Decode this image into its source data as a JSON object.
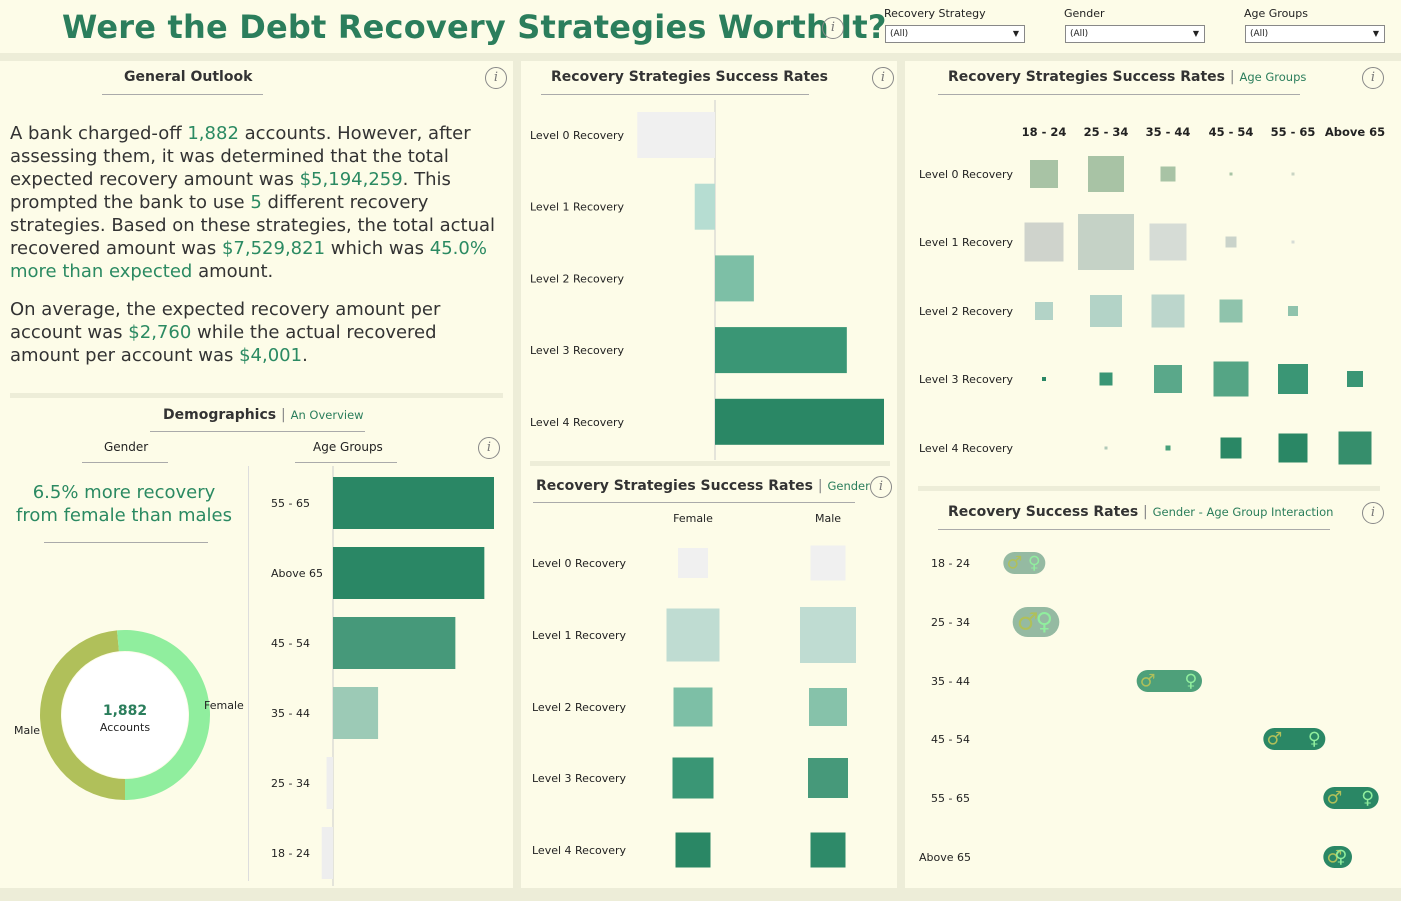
{
  "page": {
    "title": "Were the Debt Recovery Strategies Worth It?",
    "info_icon_glyph": "i"
  },
  "filters": [
    {
      "label": "Recovery Strategy",
      "value": "(All)"
    },
    {
      "label": "Gender",
      "value": "(All)"
    },
    {
      "label": "Age Groups",
      "value": "(All)"
    }
  ],
  "general_outlook": {
    "title": "General Outlook",
    "p1": [
      "A bank charged-off ",
      "1,882",
      " accounts. However, after assessing them, it was determined that the total expected recovery amount was ",
      "$5,194,259",
      ". This prompted the bank to use ",
      "5",
      " different recovery strategies. Based on these strategies, the total actual recovered amount was ",
      "$7,529,821",
      " which was ",
      "45.0% more than expected",
      " amount."
    ],
    "p2": [
      "On average, the expected recovery amount per account was ",
      "$2,760",
      " while the actual recovered amount per account was ",
      "$4,001",
      "."
    ]
  },
  "demographics": {
    "title": "Demographics",
    "subtitle": "An Overview",
    "gender_header": "Gender",
    "age_header": "Age Groups",
    "gender_insight": "6.5% more recovery from female than males",
    "donut_center_value": "1,882",
    "donut_center_label": "Accounts"
  },
  "colors": {
    "accent": "#2b7e5c",
    "male": "#b0c05a",
    "female": "#90ee9e",
    "background": "#fdfce8"
  },
  "chart_data": [
    {
      "id": "gender_donut",
      "type": "pie",
      "categories": [
        "Male",
        "Female"
      ],
      "values": [
        48.5,
        51.5
      ],
      "colors": [
        "#b0c05a",
        "#90ee9e"
      ]
    },
    {
      "id": "age_groups_bar",
      "type": "bar",
      "orientation": "horizontal",
      "categories": [
        "55 - 65",
        "Above 65",
        "45 - 54",
        "35 - 44",
        "25 - 34",
        "18 - 24"
      ],
      "values": [
        100,
        94,
        76,
        28,
        -4,
        -7
      ],
      "colors": [
        "#2a8765",
        "#2a8765",
        "#46997a",
        "#9ccab6",
        "#eeeeee",
        "#eeeeee"
      ]
    },
    {
      "id": "strategy_success_rates",
      "type": "bar",
      "orientation": "horizontal",
      "title": "Recovery Strategies Success Rates",
      "categories": [
        "Level 0 Recovery",
        "Level 1 Recovery",
        "Level 2 Recovery",
        "Level 3 Recovery",
        "Level 4 Recovery"
      ],
      "values": [
        -46,
        -12,
        23,
        78,
        100
      ],
      "colors": [
        "#f0f0f0",
        "#b6ddd2",
        "#7dbfa6",
        "#3a9675",
        "#2a8765"
      ]
    },
    {
      "id": "strategy_by_gender",
      "type": "heatmap",
      "title": "Recovery Strategies Success Rates",
      "subtitle": "Gender",
      "columns": [
        "Female",
        "Male"
      ],
      "rows": [
        "Level 0 Recovery",
        "Level 1 Recovery",
        "Level 2 Recovery",
        "Level 3 Recovery",
        "Level 4 Recovery"
      ],
      "values": [
        [
          30,
          35
        ],
        [
          53,
          56
        ],
        [
          39,
          38
        ],
        [
          41,
          40
        ],
        [
          35,
          35
        ]
      ],
      "colors": [
        [
          "#f0f0f0",
          "#f0f0f0"
        ],
        [
          "#bfdcd2",
          "#bfdcd2"
        ],
        [
          "#7dbfa6",
          "#86c2aa"
        ],
        [
          "#3a9675",
          "#46997a"
        ],
        [
          "#2a8765",
          "#2e8a69"
        ]
      ]
    },
    {
      "id": "strategy_by_age",
      "type": "heatmap",
      "title": "Recovery Strategies Success Rates",
      "subtitle": "Age Groups",
      "columns": [
        "18 - 24",
        "25 - 34",
        "35 - 44",
        "45 - 54",
        "55 - 65",
        "Above 65"
      ],
      "rows": [
        "Level 0 Recovery",
        "Level 1 Recovery",
        "Level 2 Recovery",
        "Level 3 Recovery",
        "Level 4 Recovery"
      ],
      "values": [
        [
          28,
          36,
          15,
          3,
          3,
          0
        ],
        [
          39,
          56,
          37,
          11,
          3,
          0
        ],
        [
          18,
          32,
          33,
          23,
          10,
          0
        ],
        [
          4,
          13,
          28,
          35,
          30,
          16
        ],
        [
          0,
          3,
          5,
          21,
          29,
          33
        ]
      ],
      "colors": [
        [
          "#a8c3a5",
          "#a8c3a5",
          "#a8c3a5",
          "#a8c3a5",
          "#c9d4c3",
          "#ffffff"
        ],
        [
          "#cfd3cc",
          "#c5d2c6",
          "#d6dcd6",
          "#cad3ca",
          "#d6dcd6",
          "#ffffff"
        ],
        [
          "#b3d3c7",
          "#b3d3c7",
          "#bcd6cc",
          "#8fc3ac",
          "#8fc3ac",
          "#ffffff"
        ],
        [
          "#2a8765",
          "#3a9675",
          "#5aa88a",
          "#55a585",
          "#3a9675",
          "#3a9675"
        ],
        [
          "#dddddd",
          "#b0c9b8",
          "#48a07a",
          "#2a8765",
          "#2a8765",
          "#368e6c"
        ]
      ]
    },
    {
      "id": "gender_age_interaction",
      "type": "scatter",
      "title": "Recovery Success Rates",
      "subtitle": "Gender - Age Group Interaction",
      "categories": [
        "18 - 24",
        "25 - 34",
        "35 - 44",
        "45 - 54",
        "55 - 65",
        "Above 65"
      ],
      "series": [
        {
          "name": "Male",
          "values": [
            -0.58,
            -0.54,
            -0.18,
            0.2,
            0.38,
            0.38
          ]
        },
        {
          "name": "Female",
          "values": [
            -0.52,
            -0.49,
            -0.05,
            0.32,
            0.48,
            0.4
          ]
        }
      ]
    }
  ]
}
